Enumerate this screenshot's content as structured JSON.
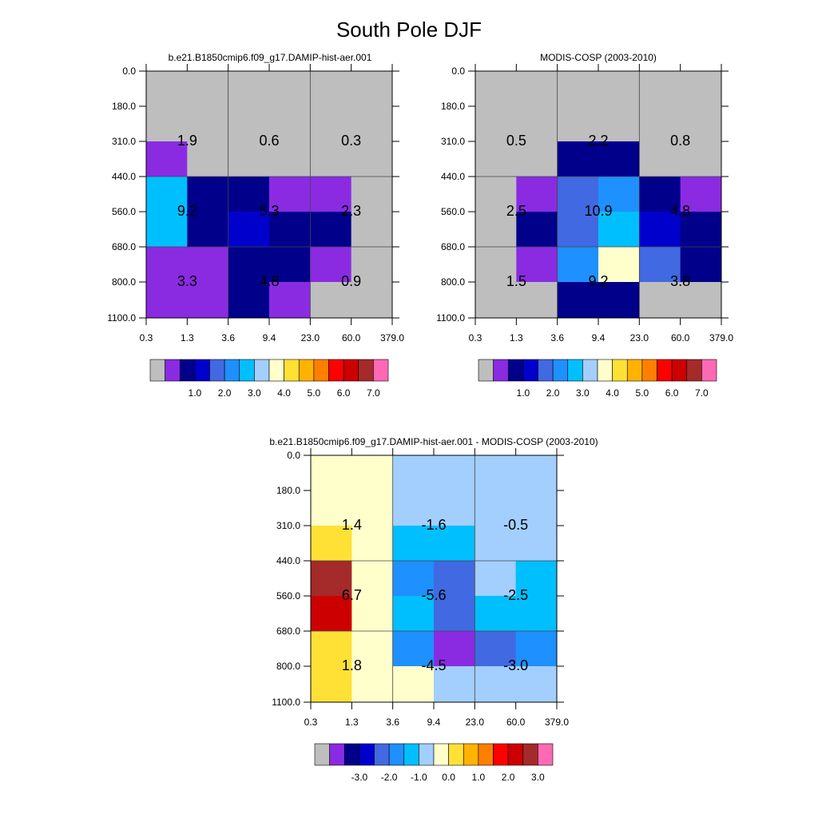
{
  "figure": {
    "title": "South Pole DJF"
  },
  "palette": {
    "0": "#bebebe",
    "1": "#8a2be2",
    "2": "#00008b",
    "3": "#0000cd",
    "4": "#4169e1",
    "5": "#1e90ff",
    "6": "#00bfff",
    "7": "#a2cffe",
    "8": "#ffffcc",
    "9": "#ffe135",
    "10": "#ffb300",
    "11": "#ff7f00",
    "12": "#ff0000",
    "13": "#cc0000",
    "14": "#a52a2a",
    "15": "#ff69b4"
  },
  "chart_data": [
    {
      "type": "heatmap",
      "title": "b.e21.B1850cmip6.f09_g17.DAMIP-hist-aer.001",
      "x_ticks": [
        "0.3",
        "1.3",
        "3.6",
        "9.4",
        "23.0",
        "60.0",
        "379.0"
      ],
      "y_ticks": [
        "0.0",
        "180.0",
        "310.0",
        "440.0",
        "560.0",
        "680.0",
        "800.0",
        "1100.0"
      ],
      "cells": [
        [
          0,
          0,
          0,
          0,
          0,
          0
        ],
        [
          0,
          0,
          0,
          0,
          0,
          0
        ],
        [
          1,
          0,
          0,
          0,
          0,
          0
        ],
        [
          6,
          2,
          2,
          1,
          1,
          0
        ],
        [
          6,
          2,
          3,
          2,
          2,
          0
        ],
        [
          1,
          1,
          2,
          2,
          1,
          0
        ],
        [
          1,
          1,
          2,
          1,
          0,
          0
        ]
      ],
      "summary_values": [
        [
          "1.9",
          "0.6",
          "0.3"
        ],
        [
          "9.2",
          "5.3",
          "2.3"
        ],
        [
          "3.3",
          "4.8",
          "0.9"
        ]
      ],
      "colorbar_labels": [
        "1.0",
        "2.0",
        "3.0",
        "4.0",
        "5.0",
        "6.0",
        "7.0"
      ]
    },
    {
      "type": "heatmap",
      "title": "MODIS-COSP (2003-2010)",
      "x_ticks": [
        "0.3",
        "1.3",
        "3.6",
        "9.4",
        "23.0",
        "60.0",
        "379.0"
      ],
      "y_ticks": [
        "0.0",
        "180.0",
        "310.0",
        "440.0",
        "560.0",
        "680.0",
        "800.0",
        "1100.0"
      ],
      "cells": [
        [
          0,
          0,
          0,
          0,
          0,
          0
        ],
        [
          0,
          0,
          0,
          0,
          0,
          0
        ],
        [
          0,
          0,
          2,
          2,
          0,
          0
        ],
        [
          0,
          1,
          4,
          5,
          2,
          1
        ],
        [
          0,
          2,
          4,
          6,
          3,
          2
        ],
        [
          0,
          1,
          5,
          8,
          4,
          2
        ],
        [
          0,
          0,
          2,
          2,
          0,
          0
        ]
      ],
      "summary_values": [
        [
          "0.5",
          "2.2",
          "0.8"
        ],
        [
          "2.5",
          "10.9",
          "4.8"
        ],
        [
          "1.5",
          "9.2",
          "3.8"
        ]
      ],
      "colorbar_labels": [
        "1.0",
        "2.0",
        "3.0",
        "4.0",
        "5.0",
        "6.0",
        "7.0"
      ]
    },
    {
      "type": "heatmap",
      "title": "b.e21.B1850cmip6.f09_g17.DAMIP-hist-aer.001 - MODIS-COSP (2003-2010)",
      "x_ticks": [
        "0.3",
        "1.3",
        "3.6",
        "9.4",
        "23.0",
        "60.0",
        "379.0"
      ],
      "y_ticks": [
        "0.0",
        "180.0",
        "310.0",
        "440.0",
        "560.0",
        "680.0",
        "800.0",
        "1100.0"
      ],
      "cells": [
        [
          8,
          8,
          7,
          7,
          7,
          7
        ],
        [
          8,
          8,
          7,
          7,
          7,
          7
        ],
        [
          9,
          8,
          6,
          6,
          7,
          7
        ],
        [
          14,
          8,
          5,
          4,
          7,
          6
        ],
        [
          13,
          8,
          6,
          4,
          6,
          6
        ],
        [
          9,
          8,
          5,
          1,
          4,
          5
        ],
        [
          9,
          8,
          8,
          7,
          7,
          7
        ]
      ],
      "summary_values": [
        [
          "1.4",
          "-1.6",
          "-0.5"
        ],
        [
          "6.7",
          "-5.6",
          "-2.5"
        ],
        [
          "1.8",
          "-4.5",
          "-3.0"
        ]
      ],
      "colorbar_labels": [
        "-3.0",
        "-2.0",
        "-1.0",
        "0.0",
        "1.0",
        "2.0",
        "3.0"
      ]
    }
  ]
}
